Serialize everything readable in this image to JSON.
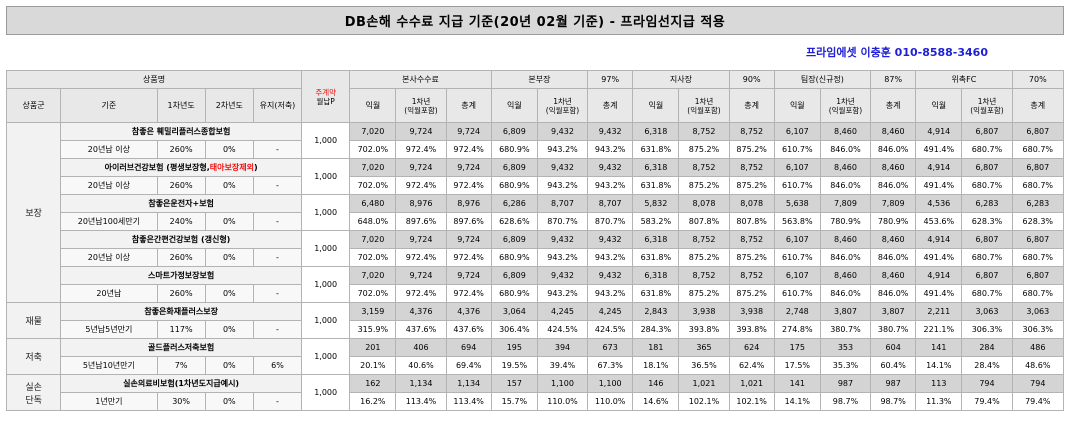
{
  "title": "DB손해 수수료 지급 기준(20년 02월 기준) - 프라임선지급 적용",
  "contact": "프라임에셋 이충훈 010-8588-3460",
  "header": {
    "product_name": "상품명",
    "prem_top": "주계약",
    "prem_bottom": "월납P",
    "groups": [
      {
        "name": "본사수수료",
        "rate": ""
      },
      {
        "name": "본부장",
        "rate": "97%"
      },
      {
        "name": "지사장",
        "rate": "90%"
      },
      {
        "name": "팀장(신규정)",
        "rate": "87%"
      },
      {
        "name": "위촉FC",
        "rate": "70%"
      }
    ],
    "sub": {
      "category": "상품군",
      "basis": "기준",
      "year1": "1차년도",
      "year2": "2차년도",
      "maint": "유지(저축)",
      "month": "익월",
      "year1_incl_a": "1차년",
      "year1_incl_b": "(익월포함)",
      "total": "총계"
    }
  },
  "sections": [
    {
      "group": "보장",
      "span": 10
    },
    {
      "group": "재물",
      "span": 2
    },
    {
      "group": "저축",
      "span": 2
    },
    {
      "group": "실손\n단독",
      "span": 2
    }
  ],
  "products": [
    {
      "name": "참좋은 훼밀리플러스종합보험",
      "name_red": "",
      "name_tail": "",
      "basis": "20년납 이상",
      "y1": "260%",
      "y2": "0%",
      "maint": "-",
      "premium": "1,000",
      "amt": [
        "7,020",
        "9,724",
        "9,724",
        "6,809",
        "9,432",
        "9,432",
        "6,318",
        "8,752",
        "8,752",
        "6,107",
        "8,460",
        "8,460",
        "4,914",
        "6,807",
        "6,807"
      ],
      "pct": [
        "702.0%",
        "972.4%",
        "972.4%",
        "680.9%",
        "943.2%",
        "943.2%",
        "631.8%",
        "875.2%",
        "875.2%",
        "610.7%",
        "846.0%",
        "846.0%",
        "491.4%",
        "680.7%",
        "680.7%"
      ]
    },
    {
      "name": "아이러브건강보험 (평생보장형,",
      "name_red": "태아보장제외",
      "name_tail": ")",
      "basis": "20년납 이상",
      "y1": "260%",
      "y2": "0%",
      "maint": "-",
      "premium": "1,000",
      "amt": [
        "7,020",
        "9,724",
        "9,724",
        "6,809",
        "9,432",
        "9,432",
        "6,318",
        "8,752",
        "8,752",
        "6,107",
        "8,460",
        "8,460",
        "4,914",
        "6,807",
        "6,807"
      ],
      "pct": [
        "702.0%",
        "972.4%",
        "972.4%",
        "680.9%",
        "943.2%",
        "943.2%",
        "631.8%",
        "875.2%",
        "875.2%",
        "610.7%",
        "846.0%",
        "846.0%",
        "491.4%",
        "680.7%",
        "680.7%"
      ]
    },
    {
      "name": "참좋은운전자+보험",
      "name_red": "",
      "name_tail": "",
      "basis": "20년납100세만기",
      "y1": "240%",
      "y2": "0%",
      "maint": "-",
      "premium": "1,000",
      "amt": [
        "6,480",
        "8,976",
        "8,976",
        "6,286",
        "8,707",
        "8,707",
        "5,832",
        "8,078",
        "8,078",
        "5,638",
        "7,809",
        "7,809",
        "4,536",
        "6,283",
        "6,283"
      ],
      "pct": [
        "648.0%",
        "897.6%",
        "897.6%",
        "628.6%",
        "870.7%",
        "870.7%",
        "583.2%",
        "807.8%",
        "807.8%",
        "563.8%",
        "780.9%",
        "780.9%",
        "453.6%",
        "628.3%",
        "628.3%"
      ]
    },
    {
      "name": "참좋은간편건강보험 (갱신형)",
      "name_red": "",
      "name_tail": "",
      "basis": "20년납 이상",
      "y1": "260%",
      "y2": "0%",
      "maint": "-",
      "premium": "1,000",
      "amt": [
        "7,020",
        "9,724",
        "9,724",
        "6,809",
        "9,432",
        "9,432",
        "6,318",
        "8,752",
        "8,752",
        "6,107",
        "8,460",
        "8,460",
        "4,914",
        "6,807",
        "6,807"
      ],
      "pct": [
        "702.0%",
        "972.4%",
        "972.4%",
        "680.9%",
        "943.2%",
        "943.2%",
        "631.8%",
        "875.2%",
        "875.2%",
        "610.7%",
        "846.0%",
        "846.0%",
        "491.4%",
        "680.7%",
        "680.7%"
      ]
    },
    {
      "name": "스마트가정보장보험",
      "name_red": "",
      "name_tail": "",
      "basis": "20년납",
      "y1": "260%",
      "y2": "0%",
      "maint": "-",
      "premium": "1,000",
      "amt": [
        "7,020",
        "9,724",
        "9,724",
        "6,809",
        "9,432",
        "9,432",
        "6,318",
        "8,752",
        "8,752",
        "6,107",
        "8,460",
        "8,460",
        "4,914",
        "6,807",
        "6,807"
      ],
      "pct": [
        "702.0%",
        "972.4%",
        "972.4%",
        "680.9%",
        "943.2%",
        "943.2%",
        "631.8%",
        "875.2%",
        "875.2%",
        "610.7%",
        "846.0%",
        "846.0%",
        "491.4%",
        "680.7%",
        "680.7%"
      ]
    },
    {
      "name": "참좋은화재플러스보장",
      "name_red": "",
      "name_tail": "",
      "basis": "5년납5년만기",
      "y1": "117%",
      "y2": "0%",
      "maint": "-",
      "premium": "1,000",
      "amt": [
        "3,159",
        "4,376",
        "4,376",
        "3,064",
        "4,245",
        "4,245",
        "2,843",
        "3,938",
        "3,938",
        "2,748",
        "3,807",
        "3,807",
        "2,211",
        "3,063",
        "3,063"
      ],
      "pct": [
        "315.9%",
        "437.6%",
        "437.6%",
        "306.4%",
        "424.5%",
        "424.5%",
        "284.3%",
        "393.8%",
        "393.8%",
        "274.8%",
        "380.7%",
        "380.7%",
        "221.1%",
        "306.3%",
        "306.3%"
      ]
    },
    {
      "name": "골드플러스저축보험",
      "name_red": "",
      "name_tail": "",
      "basis": "5년납10년만기",
      "y1": "7%",
      "y2": "0%",
      "maint": "6%",
      "premium": "1,000",
      "amt": [
        "201",
        "406",
        "694",
        "195",
        "394",
        "673",
        "181",
        "365",
        "624",
        "175",
        "353",
        "604",
        "141",
        "284",
        "486"
      ],
      "pct": [
        "20.1%",
        "40.6%",
        "69.4%",
        "19.5%",
        "39.4%",
        "67.3%",
        "18.1%",
        "36.5%",
        "62.4%",
        "17.5%",
        "35.3%",
        "60.4%",
        "14.1%",
        "28.4%",
        "48.6%"
      ]
    },
    {
      "name": "실손의료비보험(1차년도지급예시)",
      "name_red": "",
      "name_tail": "",
      "basis": "1년만기",
      "y1": "30%",
      "y2": "0%",
      "maint": "-",
      "premium": "1,000",
      "amt": [
        "162",
        "1,134",
        "1,134",
        "157",
        "1,100",
        "1,100",
        "146",
        "1,021",
        "1,021",
        "141",
        "987",
        "987",
        "113",
        "794",
        "794"
      ],
      "pct": [
        "16.2%",
        "113.4%",
        "113.4%",
        "15.7%",
        "110.0%",
        "110.0%",
        "14.6%",
        "102.1%",
        "102.1%",
        "14.1%",
        "98.7%",
        "98.7%",
        "11.3%",
        "79.4%",
        "79.4%"
      ]
    }
  ]
}
